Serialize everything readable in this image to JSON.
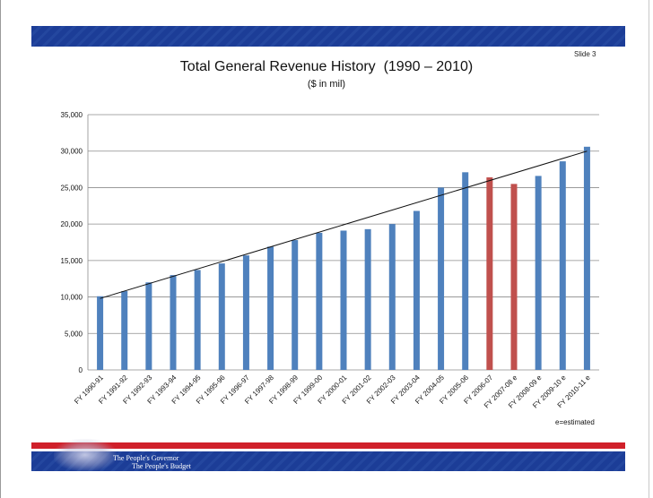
{
  "slide": {
    "slide_number": "Slide 3",
    "title": "Total General Revenue History  (1990 – 2010)",
    "subtitle": "($ in mil)",
    "footnote": "e=estimated",
    "footer_line1": "The People's Governor",
    "footer_line2": "The People's Budget"
  },
  "colors": {
    "band_blue": "#1c3d97",
    "band_red": "#d0202a",
    "bar_blue": "#4f81bd",
    "bar_red": "#c0504d"
  },
  "chart_data": {
    "type": "bar",
    "title": "Total General Revenue History  (1990 – 2010)",
    "subtitle": "($ in mil)",
    "xlabel": "",
    "ylabel": "",
    "ylim": [
      0,
      35000
    ],
    "yticks": [
      0,
      5000,
      10000,
      15000,
      20000,
      25000,
      30000,
      35000
    ],
    "ytick_labels": [
      "0",
      "5,000",
      "10,000",
      "15,000",
      "20,000",
      "25,000",
      "30,000",
      "35,000"
    ],
    "grid": true,
    "legend": "none",
    "categories": [
      "FY 1990-91",
      "FY 1991-92",
      "FY 1992-93",
      "FY 1993-94",
      "FY 1994-95",
      "FY 1995-96",
      "FY 1996-97",
      "FY 1997-98",
      "FY 1998-99",
      "FY 1999-00",
      "FY 2000-01",
      "FY 2001-02",
      "FY 2002-03",
      "FY 2003-04",
      "FY 2004-05",
      "FY 2005-06",
      "FY 2006-07",
      "FY 2007-08 e",
      "FY 2008-09 e",
      "FY 2009-10 e",
      "FY 2010-11 e"
    ],
    "values": [
      10100,
      10800,
      12000,
      13000,
      13700,
      14600,
      15700,
      16900,
      17800,
      18800,
      19100,
      19300,
      20000,
      21800,
      25000,
      27100,
      26400,
      25500,
      26600,
      28600,
      30600
    ],
    "highlighted": [
      "FY 2006-07",
      "FY 2007-08 e"
    ],
    "trendline": {
      "type": "linear",
      "start": 9800,
      "end": 30000
    }
  }
}
